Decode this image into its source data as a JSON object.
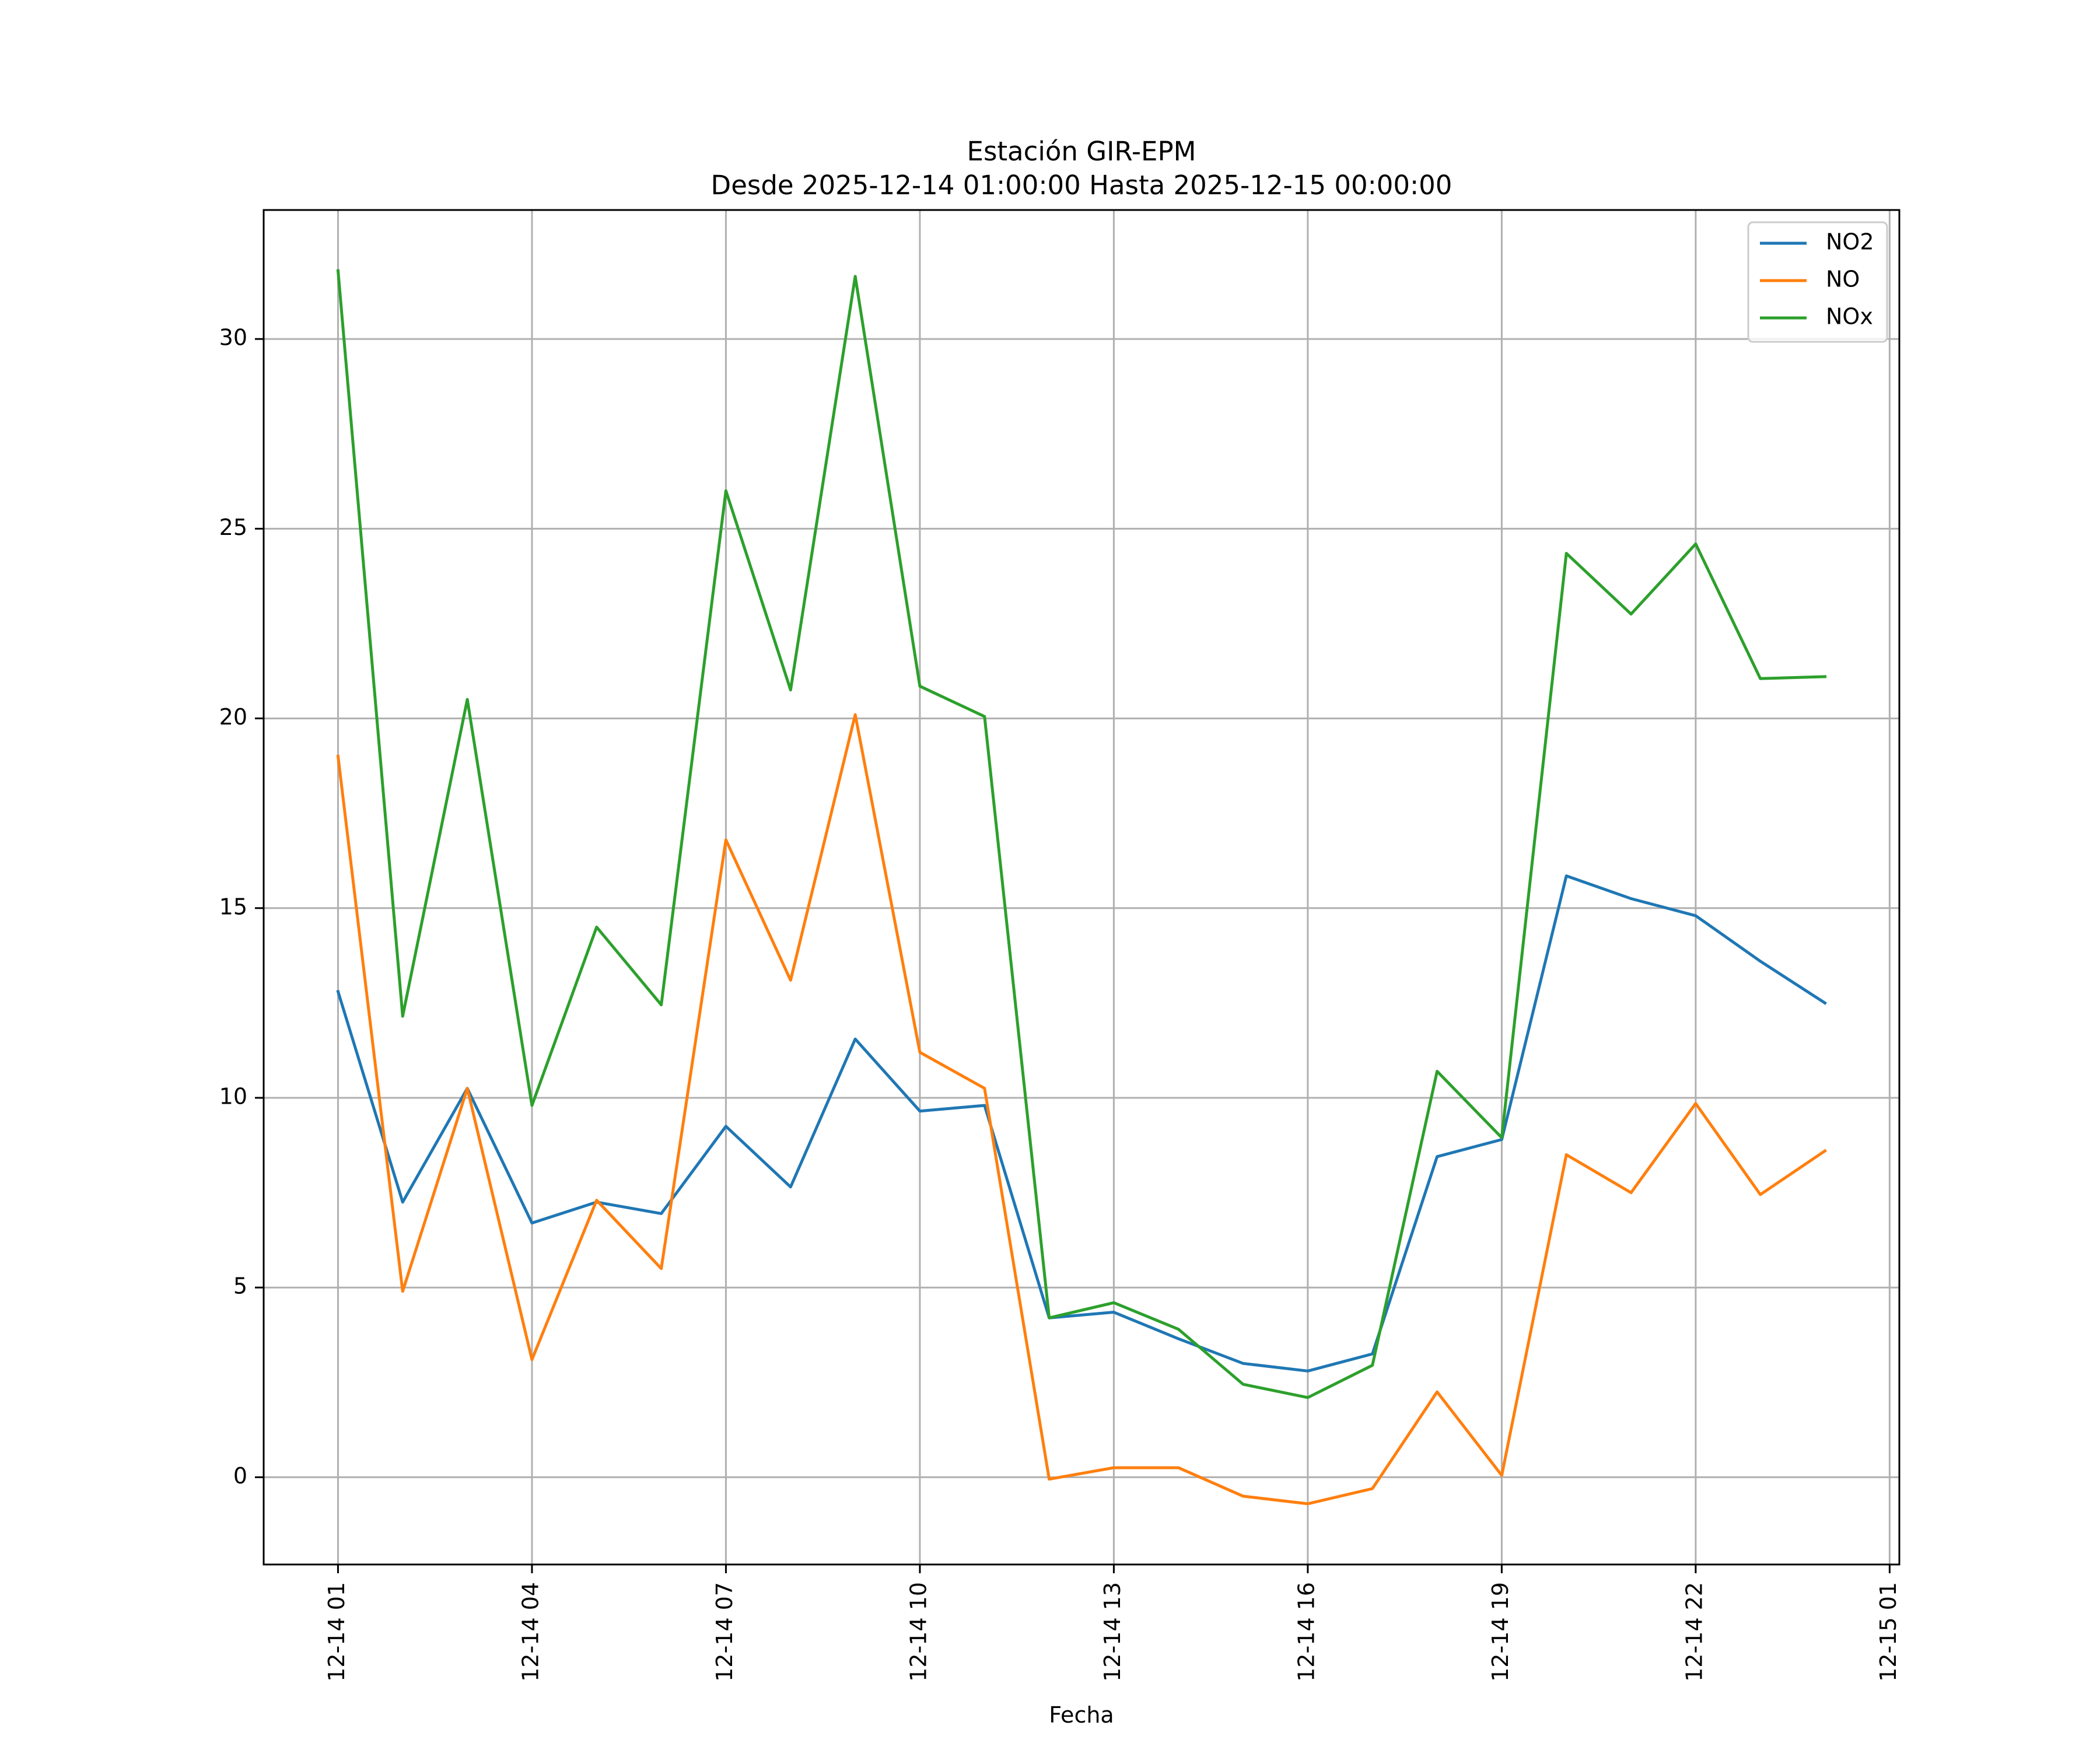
{
  "chart_data": {
    "type": "line",
    "title": "Estación GIR-EPM",
    "subtitle": "Desde 2025-12-14 01:00:00 Hasta 2025-12-15 00:00:00",
    "xlabel": "Fecha",
    "ylabel": "",
    "x": [
      "2025-12-14 01:00",
      "2025-12-14 02:00",
      "2025-12-14 03:00",
      "2025-12-14 04:00",
      "2025-12-14 05:00",
      "2025-12-14 06:00",
      "2025-12-14 07:00",
      "2025-12-14 08:00",
      "2025-12-14 09:00",
      "2025-12-14 10:00",
      "2025-12-14 11:00",
      "2025-12-14 12:00",
      "2025-12-14 13:00",
      "2025-12-14 14:00",
      "2025-12-14 15:00",
      "2025-12-14 16:00",
      "2025-12-14 17:00",
      "2025-12-14 18:00",
      "2025-12-14 19:00",
      "2025-12-14 20:00",
      "2025-12-14 21:00",
      "2025-12-14 22:00",
      "2025-12-14 23:00",
      "2025-12-15 00:00"
    ],
    "series": [
      {
        "name": "NO2",
        "color": "#1f77b4",
        "values": [
          12.8,
          7.25,
          10.25,
          6.7,
          7.25,
          6.95,
          9.25,
          7.65,
          11.55,
          9.65,
          9.8,
          4.2,
          4.35,
          3.65,
          3.0,
          2.8,
          3.25,
          8.45,
          8.9,
          15.85,
          15.25,
          14.8,
          13.6,
          12.5
        ]
      },
      {
        "name": "NO",
        "color": "#ff7f0e",
        "values": [
          19.0,
          4.9,
          10.25,
          3.1,
          7.3,
          5.5,
          16.8,
          13.1,
          20.1,
          11.2,
          10.25,
          -0.05,
          0.25,
          0.25,
          -0.5,
          -0.7,
          -0.3,
          2.25,
          0.05,
          8.5,
          7.5,
          9.85,
          7.45,
          8.6
        ]
      },
      {
        "name": "NOx",
        "color": "#2ca02c",
        "values": [
          31.8,
          12.15,
          20.5,
          9.8,
          14.5,
          12.45,
          26.0,
          20.75,
          31.65,
          20.85,
          20.05,
          4.2,
          4.6,
          3.9,
          2.45,
          2.1,
          2.95,
          10.7,
          8.95,
          24.35,
          22.75,
          24.6,
          21.05,
          21.1
        ]
      }
    ],
    "xticks": [
      "12-14 01",
      "12-14 04",
      "12-14 07",
      "12-14 10",
      "12-14 13",
      "12-14 16",
      "12-14 19",
      "12-14 22",
      "12-15 01"
    ],
    "xtick_hours": [
      0,
      3,
      6,
      9,
      12,
      15,
      18,
      21,
      24
    ],
    "xlim_hours": [
      -1.15,
      24.15
    ],
    "yticks": [
      0,
      5,
      10,
      15,
      20,
      25,
      30
    ],
    "ylim": [
      -2.3,
      33.4
    ],
    "grid": true,
    "legend": "top-right"
  }
}
